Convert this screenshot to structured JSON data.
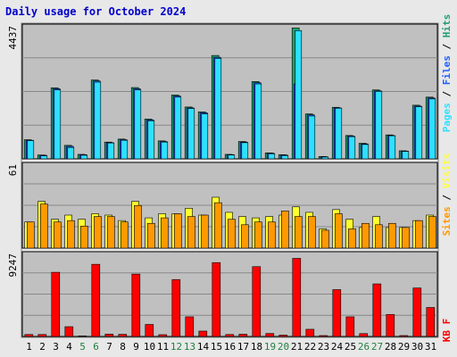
{
  "title": "Daily usage for October 2024",
  "colors": {
    "background": "#c0c0c0",
    "pages": "#2ee0ff",
    "files": "#2060ff",
    "hits": "#20a070",
    "visits": "#ffff30",
    "sites": "#ff9900",
    "kbytes": "#ff0000",
    "weekend_label": "#208040",
    "weekday_label": "#000000"
  },
  "side_labels": {
    "top": [
      {
        "text": "Pages",
        "color": "#2ee0ff"
      },
      {
        "text": " / ",
        "color": "#000000"
      },
      {
        "text": "Files",
        "color": "#2060ff"
      },
      {
        "text": " / ",
        "color": "#000000"
      },
      {
        "text": "Hits",
        "color": "#20a070"
      }
    ],
    "middle": [
      {
        "text": "Sites",
        "color": "#ff9900"
      },
      {
        "text": " / ",
        "color": "#000000"
      },
      {
        "text": "Visits",
        "color": "#ffff30"
      }
    ],
    "bottom": [
      {
        "text": "KB F",
        "color": "#ff0000"
      }
    ]
  },
  "chart_data": [
    {
      "type": "bar",
      "ylabel_max": "4437",
      "ylim": [
        0,
        4437
      ],
      "categories": [
        "1",
        "2",
        "3",
        "4",
        "5",
        "6",
        "7",
        "8",
        "9",
        "10",
        "11",
        "12",
        "13",
        "14",
        "15",
        "16",
        "17",
        "18",
        "19",
        "20",
        "21",
        "22",
        "23",
        "24",
        "25",
        "26",
        "27",
        "28",
        "29",
        "30",
        "31"
      ],
      "weekend": [
        "5",
        "6",
        "12",
        "13",
        "19",
        "20",
        "26",
        "27"
      ],
      "series": [
        {
          "name": "Hits",
          "values": [
            640,
            130,
            2370,
            450,
            150,
            2630,
            560,
            660,
            2380,
            1330,
            600,
            2130,
            1730,
            1570,
            3450,
            150,
            580,
            2580,
            200,
            140,
            4370,
            1500,
            80,
            1720,
            780,
            520,
            2300,
            800,
            270,
            1790,
            2060
          ]
        },
        {
          "name": "Files",
          "values": [
            620,
            120,
            2340,
            420,
            140,
            2600,
            540,
            640,
            2340,
            1300,
            580,
            2100,
            1700,
            1540,
            3390,
            140,
            560,
            2540,
            190,
            130,
            2500,
            1470,
            70,
            1700,
            760,
            500,
            2270,
            780,
            260,
            1760,
            2030
          ]
        },
        {
          "name": "Pages",
          "values": [
            610,
            100,
            2300,
            380,
            120,
            2560,
            530,
            620,
            2300,
            1270,
            560,
            2060,
            1680,
            1500,
            3350,
            130,
            540,
            2500,
            170,
            110,
            4280,
            1430,
            60,
            1690,
            740,
            480,
            2250,
            770,
            250,
            1740,
            2000
          ]
        }
      ]
    },
    {
      "type": "bar",
      "ylabel_max": "61",
      "ylim": [
        0,
        61
      ],
      "categories": [
        "1",
        "2",
        "3",
        "4",
        "5",
        "6",
        "7",
        "8",
        "9",
        "10",
        "11",
        "12",
        "13",
        "14",
        "15",
        "16",
        "17",
        "18",
        "19",
        "20",
        "21",
        "22",
        "23",
        "24",
        "25",
        "26",
        "27",
        "28",
        "29",
        "30",
        "31"
      ],
      "series": [
        {
          "name": "Visits",
          "values": [
            19,
            34,
            21,
            24,
            21,
            25,
            24,
            20,
            34,
            22,
            25,
            25,
            29,
            24,
            37,
            26,
            23,
            22,
            23,
            24,
            30,
            26,
            14,
            28,
            21,
            15,
            23,
            15,
            15,
            20,
            24
          ]
        },
        {
          "name": "Sites",
          "values": [
            19,
            32,
            19,
            20,
            16,
            23,
            23,
            19,
            31,
            18,
            22,
            25,
            23,
            24,
            33,
            21,
            17,
            19,
            19,
            27,
            23,
            23,
            13,
            25,
            14,
            18,
            17,
            18,
            15,
            20,
            23
          ]
        }
      ]
    },
    {
      "type": "bar",
      "ylabel_max": "9247",
      "ylim": [
        0,
        9247
      ],
      "categories": [
        "1",
        "2",
        "3",
        "4",
        "5",
        "6",
        "7",
        "8",
        "9",
        "10",
        "11",
        "12",
        "13",
        "14",
        "15",
        "16",
        "17",
        "18",
        "19",
        "20",
        "21",
        "22",
        "23",
        "24",
        "25",
        "26",
        "27",
        "28",
        "29",
        "30",
        "31"
      ],
      "series": [
        {
          "name": "KB F",
          "values": [
            220,
            220,
            7150,
            1090,
            60,
            8040,
            260,
            240,
            6950,
            1340,
            200,
            6340,
            2190,
            600,
            8230,
            220,
            250,
            7780,
            330,
            150,
            8700,
            800,
            100,
            5220,
            2190,
            320,
            5860,
            2450,
            100,
            5400,
            3230
          ]
        }
      ]
    }
  ]
}
